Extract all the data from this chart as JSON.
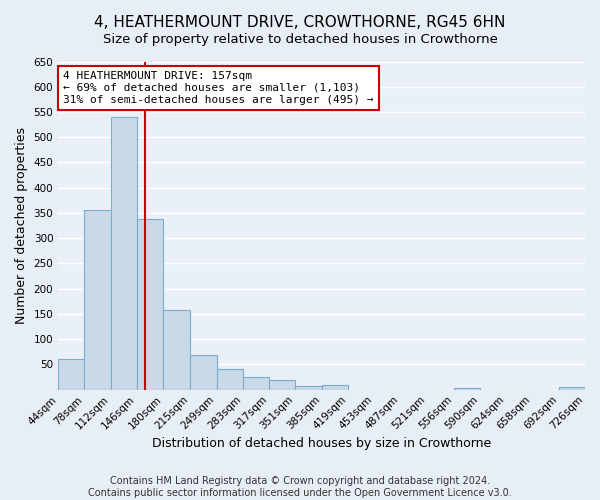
{
  "title": "4, HEATHERMOUNT DRIVE, CROWTHORNE, RG45 6HN",
  "subtitle": "Size of property relative to detached houses in Crowthorne",
  "xlabel": "Distribution of detached houses by size in Crowthorne",
  "ylabel": "Number of detached properties",
  "bin_edges": [
    44,
    78,
    112,
    146,
    180,
    215,
    249,
    283,
    317,
    351,
    385,
    419,
    453,
    487,
    521,
    556,
    590,
    624,
    658,
    692,
    726
  ],
  "bar_heights": [
    60,
    355,
    540,
    338,
    157,
    68,
    42,
    25,
    20,
    8,
    10,
    0,
    0,
    0,
    0,
    3,
    0,
    0,
    0,
    5
  ],
  "bar_color": "#c9d9e8",
  "bar_edge_color": "#7aaecf",
  "property_line_x": 157,
  "property_line_color": "#cc0000",
  "annotation_line1": "4 HEATHERMOUNT DRIVE: 157sqm",
  "annotation_line2": "← 69% of detached houses are smaller (1,103)",
  "annotation_line3": "31% of semi-detached houses are larger (495) →",
  "annotation_box_color": "#ffffff",
  "annotation_box_edge_color": "#cc0000",
  "ylim": [
    0,
    650
  ],
  "yticks": [
    0,
    50,
    100,
    150,
    200,
    250,
    300,
    350,
    400,
    450,
    500,
    550,
    600,
    650
  ],
  "tick_labels": [
    "44sqm",
    "78sqm",
    "112sqm",
    "146sqm",
    "180sqm",
    "215sqm",
    "249sqm",
    "283sqm",
    "317sqm",
    "351sqm",
    "385sqm",
    "419sqm",
    "453sqm",
    "487sqm",
    "521sqm",
    "556sqm",
    "590sqm",
    "624sqm",
    "658sqm",
    "692sqm",
    "726sqm"
  ],
  "footer": "Contains HM Land Registry data © Crown copyright and database right 2024.\nContains public sector information licensed under the Open Government Licence v3.0.",
  "background_color": "#e8eef5",
  "plot_background_color": "#eaf0f8",
  "grid_color": "#ffffff",
  "title_fontsize": 11,
  "subtitle_fontsize": 9.5,
  "axis_label_fontsize": 9,
  "tick_fontsize": 7.5,
  "footer_fontsize": 7,
  "annotation_fontsize": 8,
  "ylabel_fontsize": 9
}
